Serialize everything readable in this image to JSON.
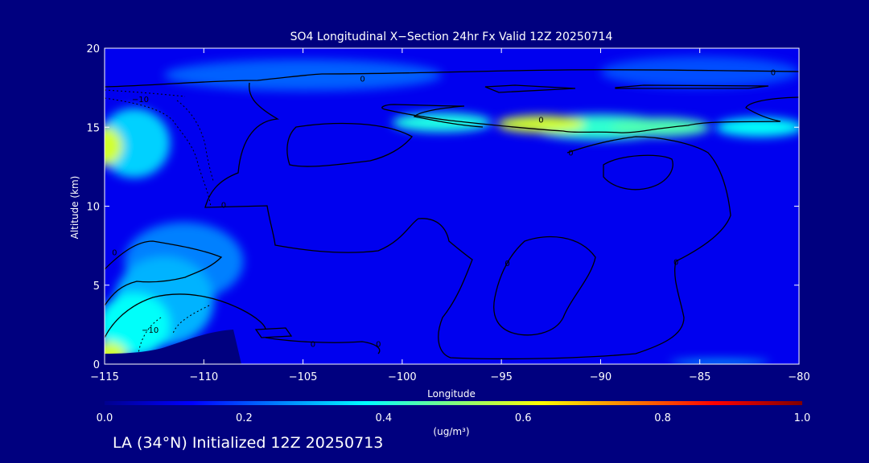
{
  "chart_data": {
    "type": "heatmap",
    "title": "SO4 Longitudinal X−Section 24hr  Fx Valid 12Z 20250714",
    "xlabel": "Longitude",
    "ylabel": "Altitude (km)",
    "xlim": [
      -115,
      -80
    ],
    "ylim": [
      0,
      20
    ],
    "x_ticks": [
      {
        "value": -115,
        "label": "−115"
      },
      {
        "value": -110,
        "label": "−110"
      },
      {
        "value": -105,
        "label": "−105"
      },
      {
        "value": -100,
        "label": "−100"
      },
      {
        "value": -95,
        "label": "−95"
      },
      {
        "value": -90,
        "label": "−90"
      },
      {
        "value": -85,
        "label": "−85"
      },
      {
        "value": -80,
        "label": "−80"
      }
    ],
    "y_ticks": [
      {
        "value": 0,
        "label": "0"
      },
      {
        "value": 5,
        "label": "5"
      },
      {
        "value": 10,
        "label": "10"
      },
      {
        "value": 15,
        "label": "15"
      },
      {
        "value": 20,
        "label": "20"
      }
    ],
    "colorbar": {
      "min": 0.0,
      "max": 1.0,
      "ticks": [
        "0.0",
        "0.2",
        "0.4",
        "0.6",
        "0.8",
        "1.0"
      ],
      "unit_label": "(ug/m³)",
      "colors": [
        "#00008f",
        "#0000ff",
        "#0080ff",
        "#00ffff",
        "#80ff80",
        "#ffff00",
        "#ff8000",
        "#ff0000",
        "#800000"
      ]
    },
    "concentration_features": [
      {
        "lon": -93,
        "alt": 15.2,
        "value": 0.58,
        "r_lon": 2.2,
        "r_alt": 0.55
      },
      {
        "lon": -87,
        "alt": 15.0,
        "value": 0.45,
        "r_lon": 2.5,
        "r_alt": 0.6
      },
      {
        "lon": -98,
        "alt": 15.3,
        "value": 0.4,
        "r_lon": 2.5,
        "r_alt": 0.6
      },
      {
        "lon": -82,
        "alt": 15.0,
        "value": 0.38,
        "r_lon": 2.2,
        "r_alt": 0.6
      },
      {
        "lon": -90,
        "alt": 15.0,
        "value": 0.42,
        "r_lon": 3.5,
        "r_alt": 0.8
      },
      {
        "lon": -115,
        "alt": 13.8,
        "value": 0.58,
        "r_lon": 0.9,
        "r_alt": 1.2
      },
      {
        "lon": -113.5,
        "alt": 14.0,
        "value": 0.33,
        "r_lon": 1.8,
        "r_alt": 2.2
      },
      {
        "lon": -114.8,
        "alt": 0.6,
        "value": 0.58,
        "r_lon": 0.9,
        "r_alt": 0.8
      },
      {
        "lon": -113.5,
        "alt": 2.5,
        "value": 0.38,
        "r_lon": 1.8,
        "r_alt": 2.0
      },
      {
        "lon": -112,
        "alt": 4.0,
        "value": 0.3,
        "r_lon": 2.5,
        "r_alt": 2.8
      },
      {
        "lon": -111,
        "alt": 6.5,
        "value": 0.25,
        "r_lon": 3.0,
        "r_alt": 2.5
      },
      {
        "lon": -105,
        "alt": 18.3,
        "value": 0.22,
        "r_lon": 7.0,
        "r_alt": 1.0
      },
      {
        "lon": -85,
        "alt": 18.5,
        "value": 0.2,
        "r_lon": 5.0,
        "r_alt": 1.0
      },
      {
        "lon": -84,
        "alt": 0.1,
        "value": 0.35,
        "r_lon": 2.5,
        "r_alt": 0.15
      }
    ],
    "contour_labels": [
      {
        "lon": -102,
        "alt": 18.1,
        "text": "0"
      },
      {
        "lon": -81.3,
        "alt": 18.5,
        "text": "0"
      },
      {
        "lon": -93,
        "alt": 15.5,
        "text": "0"
      },
      {
        "lon": -91.5,
        "alt": 13.4,
        "text": "0"
      },
      {
        "lon": -109,
        "alt": 10.1,
        "text": "0"
      },
      {
        "lon": -114.5,
        "alt": 7.1,
        "text": "0"
      },
      {
        "lon": -86.2,
        "alt": 6.5,
        "text": "0"
      },
      {
        "lon": -94.7,
        "alt": 6.4,
        "text": "0"
      },
      {
        "lon": -113.2,
        "alt": 16.8,
        "text": "−10"
      },
      {
        "lon": -112.7,
        "alt": 2.2,
        "text": "−10"
      },
      {
        "lon": -104.5,
        "alt": 1.3,
        "text": "0"
      },
      {
        "lon": -101.2,
        "alt": 1.3,
        "text": "0"
      }
    ]
  },
  "caption": "LA (34°N) Initialized 12Z 20250713"
}
